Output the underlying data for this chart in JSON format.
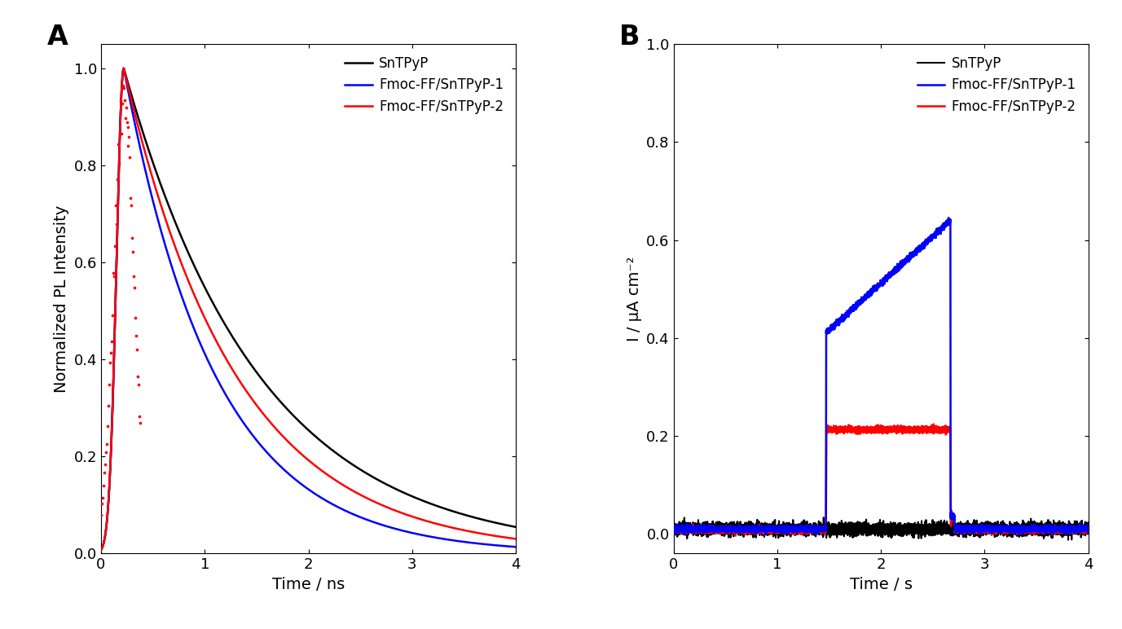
{
  "panel_A": {
    "title": "A",
    "xlabel": "Time / ns",
    "ylabel": "Normalized PL Intensity",
    "xlim": [
      0,
      4
    ],
    "ylim": [
      0.0,
      1.05
    ],
    "yticks": [
      0.0,
      0.2,
      0.4,
      0.6,
      0.8,
      1.0
    ],
    "xticks": [
      0,
      1,
      2,
      3,
      4
    ],
    "peak_time": 0.22,
    "tau_black": 1.3,
    "tau_blue": 0.88,
    "tau_red": 1.08,
    "colors": {
      "SnTPyP": "#000000",
      "Fmoc-FF/SnTPyP-1": "#0000FF",
      "Fmoc-FF/SnTPyP-2": "#FF0000"
    },
    "lw": 1.8
  },
  "panel_B": {
    "title": "B",
    "xlabel": "Time / s",
    "ylabel": "I / μA cm⁻²",
    "xlim": [
      0,
      4
    ],
    "ylim": [
      -0.04,
      1.0
    ],
    "yticks": [
      0.0,
      0.2,
      0.4,
      0.6,
      0.8,
      1.0
    ],
    "xticks": [
      0,
      1,
      2,
      3,
      4
    ],
    "light_on": 1.47,
    "light_off": 2.67,
    "colors": {
      "SnTPyP": "#000000",
      "Fmoc-FF/SnTPyP-1": "#0000FF",
      "Fmoc-FF/SnTPyP-2": "#FF0000"
    },
    "lw": 1.8,
    "black_baseline": 0.01,
    "black_noise": 0.006,
    "blue_on_initial": 0.4,
    "blue_on_peak": 0.63,
    "blue_off": 0.03,
    "blue_baseline": 0.01,
    "blue_noise": 0.003,
    "red_on_value": 0.205,
    "red_off": 0.03,
    "red_baseline": 0.008,
    "red_noise": 0.003
  },
  "fig_width": 13.77,
  "fig_height": 7.72,
  "dpi": 100
}
